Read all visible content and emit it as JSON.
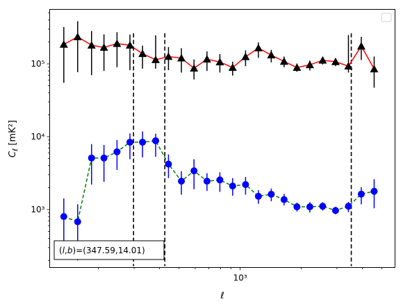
{
  "chart_data": {
    "type": "scatter",
    "title": "",
    "xlabel": "ℓ",
    "ylabel": "C_ℓ [mK²]",
    "xscale": "log",
    "yscale": "log",
    "xlim": [
      115,
      5800
    ],
    "ylim": [
      160,
      560000
    ],
    "x_ticks": [
      {
        "value": 1000,
        "label": "10³"
      }
    ],
    "y_ticks": [
      {
        "value": 1000,
        "label": "10³"
      },
      {
        "value": 10000,
        "label": "10⁴"
      },
      {
        "value": 100000,
        "label": "10⁵"
      }
    ],
    "vlines": [
      298,
      425,
      3530
    ],
    "annotation": "(l,b)=(347.59,14.01)",
    "legend": {
      "location": "upper right",
      "entries": []
    },
    "grid": false,
    "series": [
      {
        "color": "#000000",
        "line_color": "#ff0000",
        "line_style": "solid",
        "marker": "triangle",
        "x": [
          135,
          158,
          185,
          213,
          247,
          286,
          330,
          383,
          443,
          513,
          592,
          686,
          794,
          918,
          1063,
          1230,
          1423,
          1646,
          1905,
          2205,
          2552,
          2953,
          3418,
          3955,
          4577
        ],
        "y": [
          185000,
          235000,
          180000,
          168000,
          190000,
          180000,
          138000,
          114000,
          126000,
          120000,
          87000,
          116000,
          106000,
          89000,
          125000,
          165000,
          132000,
          108000,
          89000,
          97000,
          112000,
          107000,
          93000,
          175000,
          85000
        ],
        "err_low": [
          130000,
          158000,
          110000,
          88000,
          100000,
          98000,
          52000,
          28000,
          44000,
          44000,
          26000,
          36000,
          30000,
          20000,
          32000,
          44000,
          27000,
          18000,
          11000,
          16000,
          14000,
          14000,
          17000,
          62000,
          38000
        ],
        "err_high": [
          135000,
          150000,
          102000,
          86000,
          82000,
          72000,
          40000,
          132000,
          44000,
          44000,
          28000,
          32000,
          30000,
          18000,
          28000,
          32000,
          24000,
          18000,
          12000,
          14000,
          12000,
          12000,
          156000,
          60000,
          41000
        ]
      },
      {
        "color": "#0000ff",
        "line_color": "#008000",
        "line_style": "dashed",
        "marker": "circle",
        "x": [
          135,
          158,
          185,
          213,
          247,
          286,
          330,
          383,
          443,
          513,
          592,
          686,
          794,
          918,
          1063,
          1230,
          1423,
          1646,
          1905,
          2205,
          2552,
          2953,
          3418,
          3955,
          4577
        ],
        "y": [
          800,
          680,
          5100,
          5100,
          6200,
          8400,
          8400,
          8800,
          4200,
          2450,
          3400,
          2450,
          2550,
          2100,
          2200,
          1520,
          1620,
          1370,
          1090,
          1090,
          1110,
          970,
          1110,
          1630,
          1780
        ],
        "err_low": [
          540,
          480,
          2900,
          2700,
          2700,
          3500,
          3200,
          3500,
          1500,
          850,
          1500,
          650,
          800,
          550,
          600,
          320,
          320,
          230,
          150,
          180,
          140,
          110,
          190,
          450,
          740
        ],
        "err_high": [
          620,
          500,
          2800,
          2600,
          2800,
          2700,
          3400,
          2200,
          1500,
          900,
          1500,
          700,
          700,
          600,
          600,
          320,
          320,
          270,
          150,
          170,
          150,
          120,
          160,
          400,
          830
        ]
      }
    ]
  }
}
